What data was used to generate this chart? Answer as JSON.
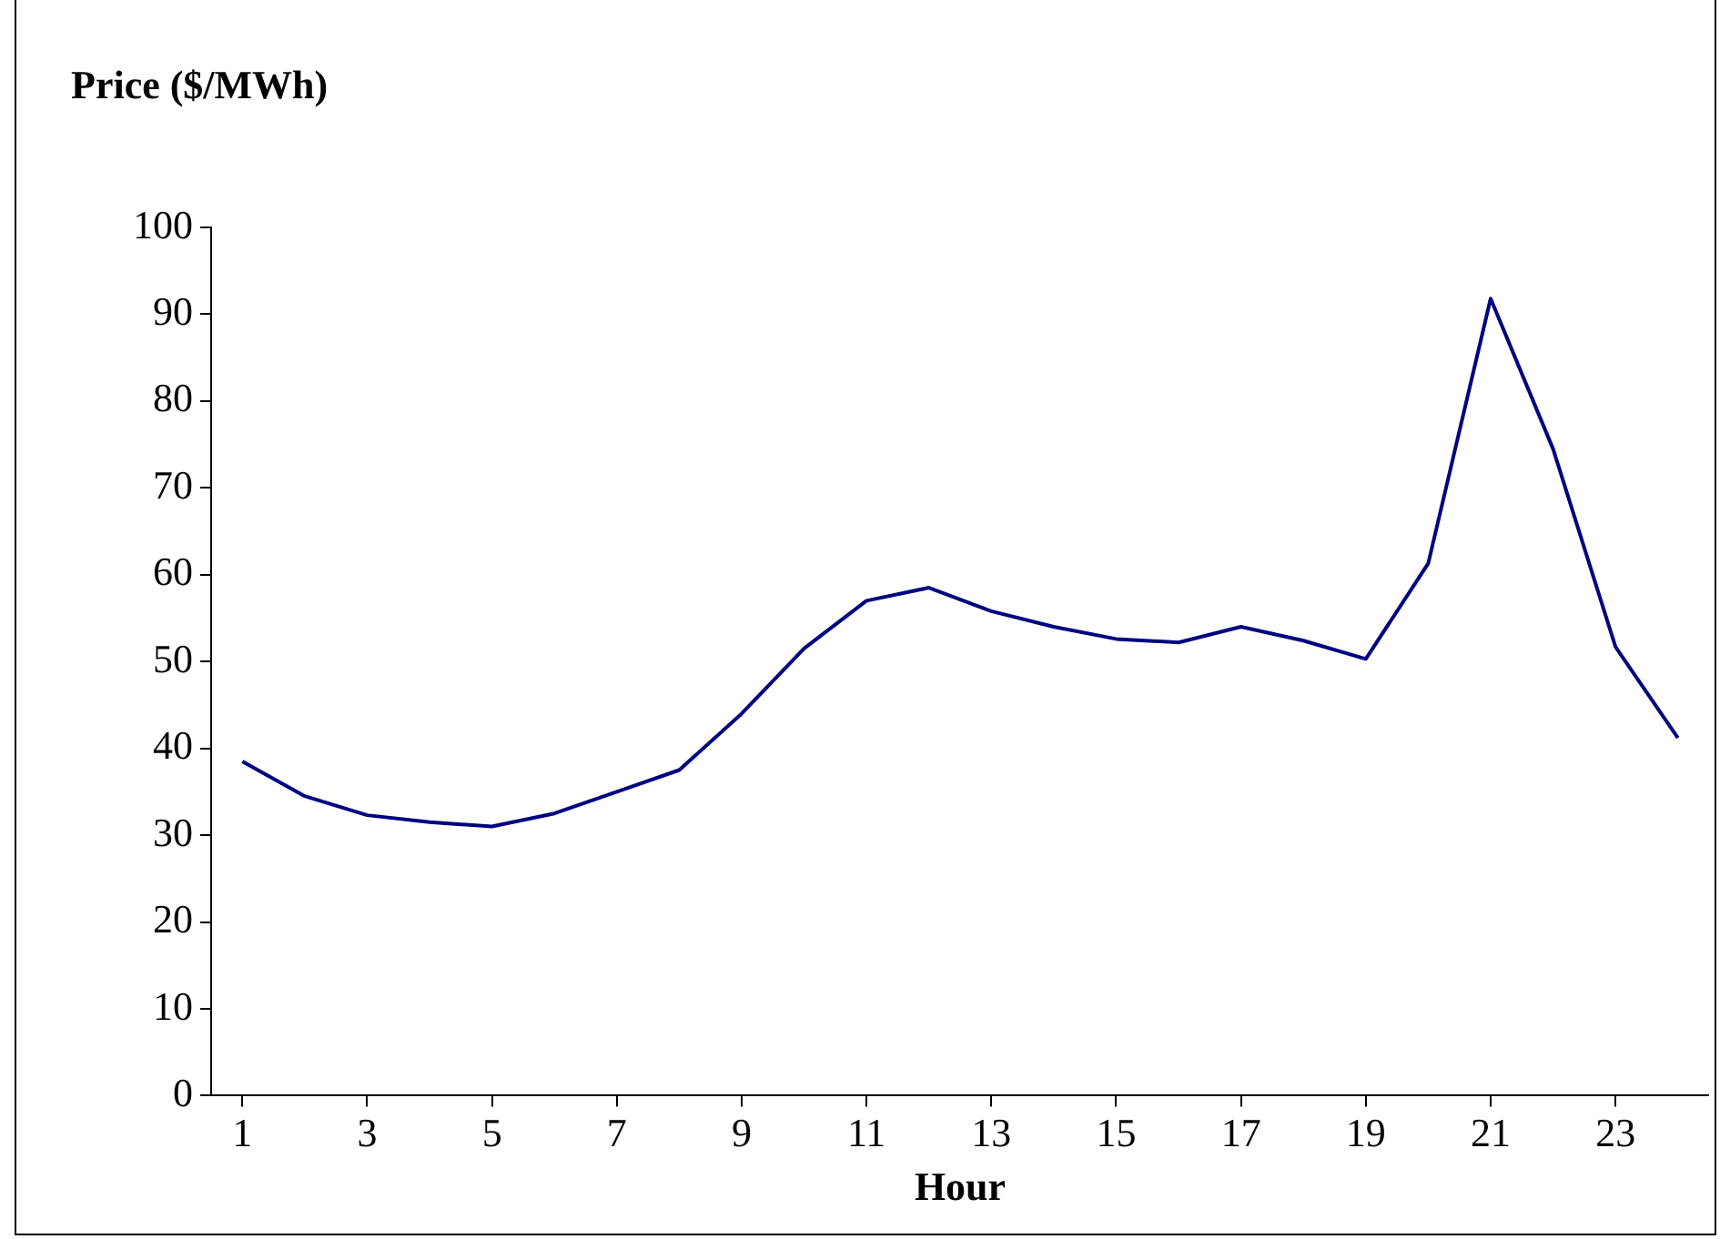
{
  "chart_data": {
    "type": "line",
    "title": "Price ($/MWh)",
    "xlabel": "Hour",
    "x": [
      1,
      2,
      3,
      4,
      5,
      6,
      7,
      8,
      9,
      10,
      11,
      12,
      13,
      14,
      15,
      16,
      17,
      18,
      19,
      20,
      21,
      22,
      23,
      24
    ],
    "xlim": [
      0.5,
      24.5
    ],
    "xticks": [
      1,
      3,
      5,
      7,
      9,
      11,
      13,
      15,
      17,
      19,
      21,
      23
    ],
    "series": [
      {
        "color": "#000080",
        "values": [
          38.5,
          34.5,
          32.3,
          31.5,
          31,
          32.5,
          35,
          37.5,
          44,
          51.5,
          57,
          58.5,
          55.8,
          54,
          52.6,
          52.2,
          54,
          52.4,
          50.3,
          61.3,
          91.8,
          74.5,
          51.7,
          41.2
        ]
      }
    ],
    "ylim": [
      0,
      100
    ],
    "yticks": [
      0,
      10,
      20,
      30,
      40,
      50,
      60,
      70,
      80,
      90,
      100
    ],
    "grid": false,
    "legend": false,
    "marker": "none",
    "line_style": "solid"
  }
}
